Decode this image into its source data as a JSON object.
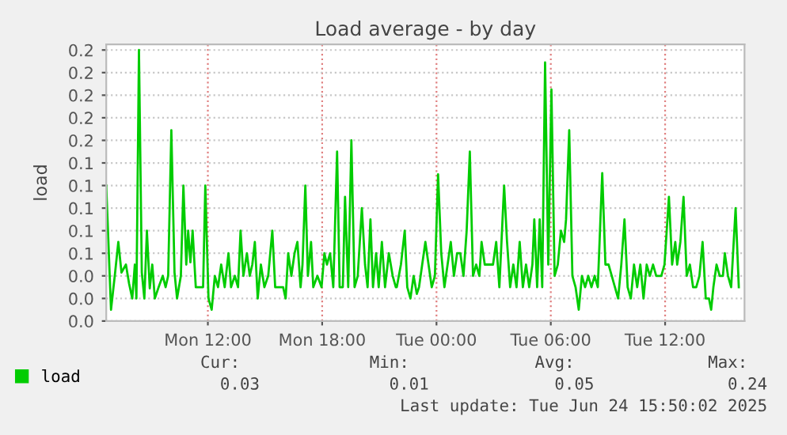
{
  "chart_data": {
    "type": "line",
    "title": "Load average - by day",
    "ylabel": "load",
    "x": [
      "2025-06-23T06:40",
      "2025-06-23T06:55",
      "2025-06-23T07:08",
      "2025-06-23T07:18",
      "2025-06-23T07:28",
      "2025-06-23T07:42",
      "2025-06-23T07:52",
      "2025-06-23T08:02",
      "2025-06-23T08:10",
      "2025-06-23T08:15",
      "2025-06-23T08:23",
      "2025-06-23T08:32",
      "2025-06-23T08:40",
      "2025-06-23T08:48",
      "2025-06-23T08:57",
      "2025-06-23T09:05",
      "2025-06-23T09:13",
      "2025-06-23T09:25",
      "2025-06-23T09:38",
      "2025-06-23T09:47",
      "2025-06-23T09:55",
      "2025-06-23T10:05",
      "2025-06-23T10:15",
      "2025-06-23T10:23",
      "2025-06-23T10:35",
      "2025-06-23T10:43",
      "2025-06-23T10:52",
      "2025-06-23T10:58",
      "2025-06-23T11:05",
      "2025-06-23T11:12",
      "2025-06-23T11:22",
      "2025-06-23T11:35",
      "2025-06-23T11:45",
      "2025-06-23T11:52",
      "2025-06-23T12:02",
      "2025-06-23T12:12",
      "2025-06-23T12:22",
      "2025-06-23T12:32",
      "2025-06-23T12:42",
      "2025-06-23T12:53",
      "2025-06-23T13:05",
      "2025-06-23T13:13",
      "2025-06-23T13:25",
      "2025-06-23T13:35",
      "2025-06-23T13:43",
      "2025-06-23T13:52",
      "2025-06-23T14:03",
      "2025-06-23T14:12",
      "2025-06-23T14:20",
      "2025-06-23T14:28",
      "2025-06-23T14:37",
      "2025-06-23T14:47",
      "2025-06-23T14:58",
      "2025-06-23T15:10",
      "2025-06-23T15:23",
      "2025-06-23T15:32",
      "2025-06-23T15:43",
      "2025-06-23T15:57",
      "2025-06-23T16:05",
      "2025-06-23T16:13",
      "2025-06-23T16:23",
      "2025-06-23T16:33",
      "2025-06-23T16:42",
      "2025-06-23T16:52",
      "2025-06-23T16:58",
      "2025-06-23T17:07",
      "2025-06-23T17:15",
      "2025-06-23T17:25",
      "2025-06-23T17:32",
      "2025-06-23T17:45",
      "2025-06-23T17:58",
      "2025-06-23T18:07",
      "2025-06-23T18:15",
      "2025-06-23T18:25",
      "2025-06-23T18:35",
      "2025-06-23T18:47",
      "2025-06-23T18:55",
      "2025-06-23T19:05",
      "2025-06-23T19:12",
      "2025-06-23T19:22",
      "2025-06-23T19:32",
      "2025-06-23T19:42",
      "2025-06-23T19:52",
      "2025-06-23T20:05",
      "2025-06-23T20:15",
      "2025-06-23T20:23",
      "2025-06-23T20:32",
      "2025-06-23T20:40",
      "2025-06-23T20:50",
      "2025-06-23T20:58",
      "2025-06-23T21:08",
      "2025-06-23T21:18",
      "2025-06-23T21:30",
      "2025-06-23T21:42",
      "2025-06-23T21:52",
      "2025-06-23T21:55",
      "2025-06-23T22:08",
      "2025-06-23T22:20",
      "2025-06-23T22:28",
      "2025-06-23T22:38",
      "2025-06-23T22:48",
      "2025-06-23T22:58",
      "2025-06-23T23:05",
      "2025-06-23T23:15",
      "2025-06-23T23:25",
      "2025-06-23T23:35",
      "2025-06-23T23:45",
      "2025-06-23T23:55",
      "2025-06-24T00:05",
      "2025-06-24T00:15",
      "2025-06-24T00:25",
      "2025-06-24T00:35",
      "2025-06-24T00:45",
      "2025-06-24T00:55",
      "2025-06-24T01:05",
      "2025-06-24T01:15",
      "2025-06-24T01:25",
      "2025-06-24T01:35",
      "2025-06-24T01:45",
      "2025-06-24T01:55",
      "2025-06-24T02:05",
      "2025-06-24T02:15",
      "2025-06-24T02:22",
      "2025-06-24T02:32",
      "2025-06-24T02:47",
      "2025-06-24T02:58",
      "2025-06-24T03:08",
      "2025-06-24T03:18",
      "2025-06-24T03:33",
      "2025-06-24T03:42",
      "2025-06-24T03:52",
      "2025-06-24T04:02",
      "2025-06-24T04:12",
      "2025-06-24T04:22",
      "2025-06-24T04:32",
      "2025-06-24T04:42",
      "2025-06-24T04:52",
      "2025-06-24T05:02",
      "2025-06-24T05:08",
      "2025-06-24T05:17",
      "2025-06-24T05:25",
      "2025-06-24T05:33",
      "2025-06-24T05:42",
      "2025-06-24T05:52",
      "2025-06-24T06:02",
      "2025-06-24T06:12",
      "2025-06-24T06:22",
      "2025-06-24T06:32",
      "2025-06-24T06:42",
      "2025-06-24T06:48",
      "2025-06-24T06:58",
      "2025-06-24T07:08",
      "2025-06-24T07:18",
      "2025-06-24T07:28",
      "2025-06-24T07:38",
      "2025-06-24T07:48",
      "2025-06-24T07:58",
      "2025-06-24T08:08",
      "2025-06-24T08:18",
      "2025-06-24T08:28",
      "2025-06-24T08:42",
      "2025-06-24T08:52",
      "2025-06-24T09:02",
      "2025-06-24T09:12",
      "2025-06-24T09:22",
      "2025-06-24T09:32",
      "2025-06-24T09:42",
      "2025-06-24T09:52",
      "2025-06-24T10:02",
      "2025-06-24T10:12",
      "2025-06-24T10:22",
      "2025-06-24T10:32",
      "2025-06-24T10:42",
      "2025-06-24T10:52",
      "2025-06-24T11:02",
      "2025-06-24T11:12",
      "2025-06-24T11:22",
      "2025-06-24T11:32",
      "2025-06-24T11:48",
      "2025-06-24T11:58",
      "2025-06-24T12:12",
      "2025-06-24T12:22",
      "2025-06-24T12:32",
      "2025-06-24T12:38",
      "2025-06-24T12:48",
      "2025-06-24T12:58",
      "2025-06-24T13:08",
      "2025-06-24T13:18",
      "2025-06-24T13:28",
      "2025-06-24T13:38",
      "2025-06-24T13:48",
      "2025-06-24T13:58",
      "2025-06-24T14:08",
      "2025-06-24T14:18",
      "2025-06-24T14:25",
      "2025-06-24T14:32",
      "2025-06-24T14:42",
      "2025-06-24T14:52",
      "2025-06-24T15:02",
      "2025-06-24T15:08",
      "2025-06-24T15:18",
      "2025-06-24T15:28",
      "2025-06-24T15:42",
      "2025-06-24T15:52"
    ],
    "series": [
      {
        "name": "load",
        "color": "#00cc00",
        "values": [
          0.12,
          0.01,
          0.043,
          0.07,
          0.043,
          0.05,
          0.033,
          0.02,
          0.05,
          0.02,
          0.24,
          0.043,
          0.02,
          0.08,
          0.029,
          0.05,
          0.02,
          0.03,
          0.04,
          0.03,
          0.04,
          0.169,
          0.043,
          0.02,
          0.04,
          0.12,
          0.05,
          0.08,
          0.052,
          0.08,
          0.03,
          0.03,
          0.03,
          0.12,
          0.02,
          0.01,
          0.04,
          0.03,
          0.05,
          0.03,
          0.06,
          0.03,
          0.04,
          0.03,
          0.08,
          0.04,
          0.06,
          0.04,
          0.05,
          0.07,
          0.02,
          0.05,
          0.03,
          0.04,
          0.08,
          0.03,
          0.03,
          0.03,
          0.02,
          0.06,
          0.04,
          0.06,
          0.07,
          0.03,
          0.05,
          0.12,
          0.04,
          0.07,
          0.03,
          0.04,
          0.03,
          0.06,
          0.05,
          0.06,
          0.03,
          0.15,
          0.03,
          0.03,
          0.11,
          0.03,
          0.16,
          0.03,
          0.04,
          0.1,
          0.05,
          0.03,
          0.09,
          0.03,
          0.06,
          0.03,
          0.07,
          0.03,
          0.06,
          0.04,
          0.03,
          0.03,
          0.05,
          0.08,
          0.03,
          0.02,
          0.04,
          0.024,
          0.03,
          0.05,
          0.07,
          0.05,
          0.03,
          0.04,
          0.13,
          0.06,
          0.03,
          0.05,
          0.07,
          0.04,
          0.06,
          0.06,
          0.04,
          0.08,
          0.15,
          0.04,
          0.05,
          0.04,
          0.07,
          0.05,
          0.05,
          0.05,
          0.07,
          0.03,
          0.12,
          0.071,
          0.03,
          0.05,
          0.03,
          0.07,
          0.03,
          0.05,
          0.03,
          0.05,
          0.09,
          0.03,
          0.09,
          0.03,
          0.229,
          0.05,
          0.205,
          0.04,
          0.05,
          0.08,
          0.07,
          0.09,
          0.169,
          0.04,
          0.03,
          0.01,
          0.04,
          0.03,
          0.04,
          0.03,
          0.04,
          0.03,
          0.131,
          0.05,
          0.05,
          0.04,
          0.03,
          0.02,
          0.05,
          0.09,
          0.03,
          0.02,
          0.05,
          0.03,
          0.05,
          0.02,
          0.05,
          0.04,
          0.05,
          0.04,
          0.04,
          0.05,
          0.11,
          0.05,
          0.07,
          0.05,
          0.07,
          0.11,
          0.04,
          0.05,
          0.03,
          0.03,
          0.04,
          0.07,
          0.02,
          0.02,
          0.01,
          0.03,
          0.05,
          0.04,
          0.04,
          0.06,
          0.04,
          0.03,
          0.1,
          0.03
        ]
      }
    ],
    "xlim": [
      "2025-06-23T06:40",
      "2025-06-24T16:10"
    ],
    "xticks": [
      {
        "value": "2025-06-23T12:00",
        "label": "Mon 12:00"
      },
      {
        "value": "2025-06-23T18:00",
        "label": "Mon 18:00"
      },
      {
        "value": "2025-06-24T00:00",
        "label": "Tue 00:00"
      },
      {
        "value": "2025-06-24T06:00",
        "label": "Tue 06:00"
      },
      {
        "value": "2025-06-24T12:00",
        "label": "Tue 12:00"
      }
    ],
    "ylim": [
      0,
      0.245
    ],
    "yticks": [
      {
        "value": 0,
        "label": "0.0"
      },
      {
        "value": 0.02,
        "label": "0.0"
      },
      {
        "value": 0.04,
        "label": "0.0"
      },
      {
        "value": 0.06,
        "label": "0.1"
      },
      {
        "value": 0.08,
        "label": "0.1"
      },
      {
        "value": 0.1,
        "label": "0.1"
      },
      {
        "value": 0.12,
        "label": "0.1"
      },
      {
        "value": 0.14,
        "label": "0.1"
      },
      {
        "value": 0.16,
        "label": "0.2"
      },
      {
        "value": 0.18,
        "label": "0.2"
      },
      {
        "value": 0.2,
        "label": "0.2"
      },
      {
        "value": 0.22,
        "label": "0.2"
      },
      {
        "value": 0.24,
        "label": "0.2"
      }
    ],
    "grid": true,
    "legend": "bottom left",
    "marker": "none",
    "line_style": "solid",
    "annotations": [
      "Cur:",
      "Min:",
      "Avg:",
      "Max:",
      "0.03",
      "0.01",
      "0.05",
      "0.24",
      "Last update: Tue Jun 24 15:50:02 2025"
    ]
  }
}
